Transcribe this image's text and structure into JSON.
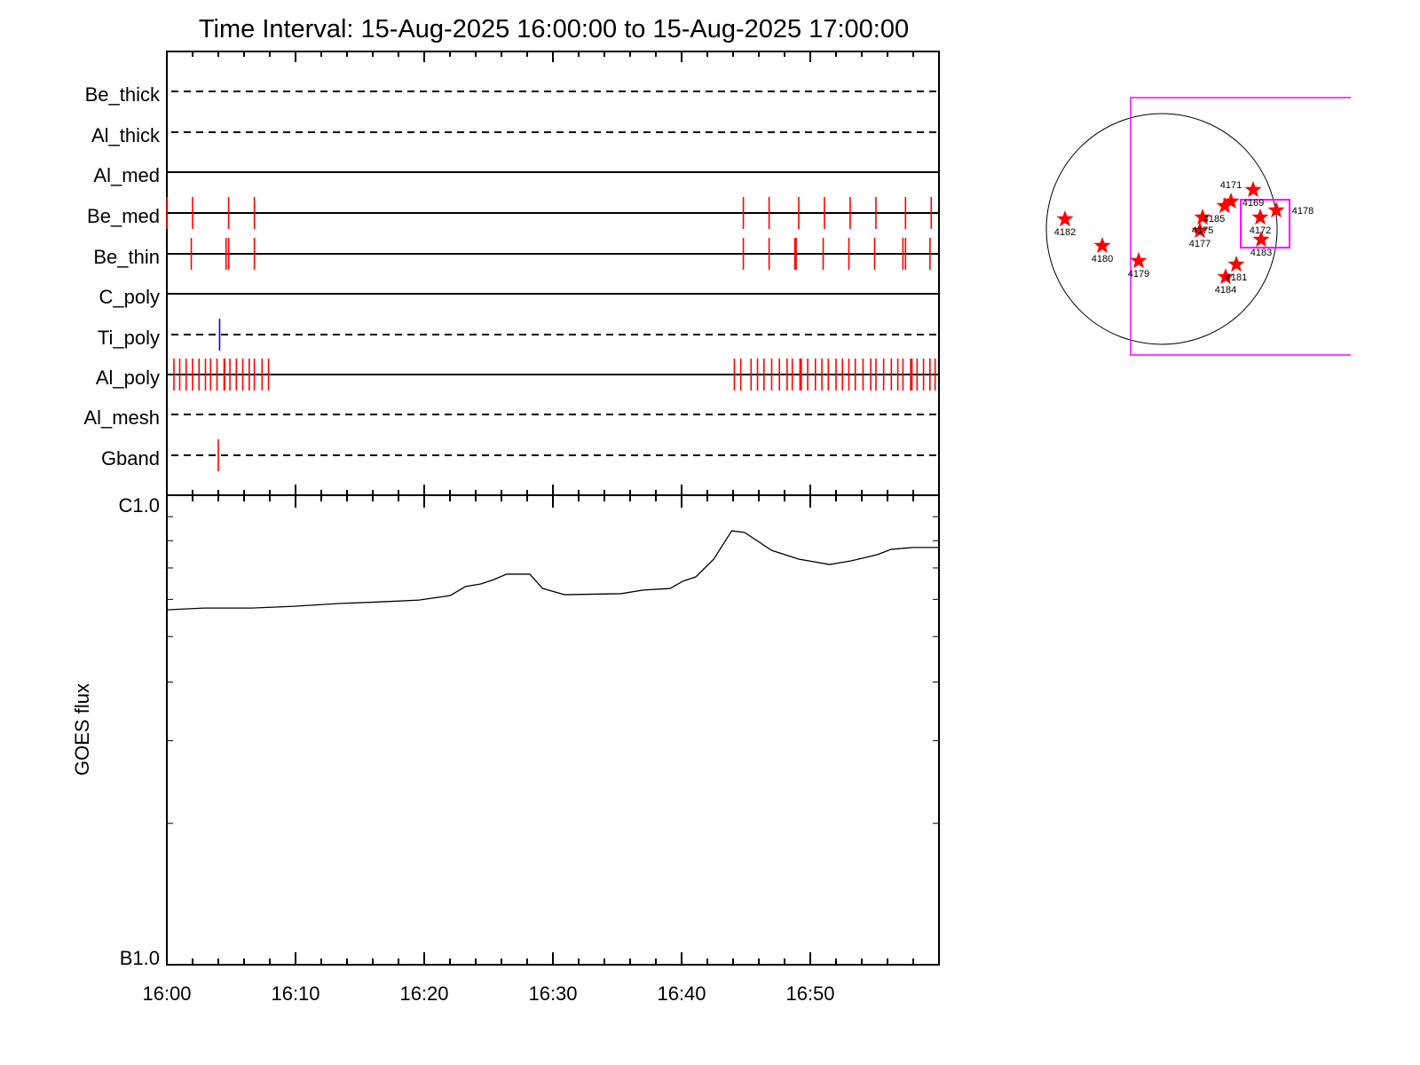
{
  "chart_data": [
    {
      "type": "event-raster",
      "title": "Time Interval: 15-Aug-2025 16:00:00 to 15-Aug-2025 17:00:00",
      "x_unit": "minutes after 16:00",
      "xlim": [
        0,
        60
      ],
      "rows": [
        {
          "name": "Be_thick",
          "line": "dashed",
          "events": []
        },
        {
          "name": "Al_thick",
          "line": "dashed",
          "events": []
        },
        {
          "name": "Al_med",
          "line": "solid",
          "events": []
        },
        {
          "name": "Be_med",
          "line": "solid",
          "events": [
            0.0,
            2.0,
            4.8,
            6.8,
            44.8,
            46.8,
            49.1,
            51.1,
            53.1,
            55.1,
            57.4,
            59.4
          ]
        },
        {
          "name": "Be_thin",
          "line": "solid",
          "events": [
            1.9,
            4.6,
            4.8,
            6.8,
            44.8,
            46.8,
            48.8,
            48.9,
            51.0,
            53.0,
            55.0,
            57.2,
            57.4,
            59.3
          ]
        },
        {
          "name": "C_poly",
          "line": "solid",
          "events": []
        },
        {
          "name": "Ti_poly",
          "line": "dashed",
          "events": [
            4.1
          ],
          "event_color": "#0000ff"
        },
        {
          "name": "Al_poly",
          "line": "solid",
          "events": [
            0.55,
            1.0,
            1.5,
            2.0,
            2.5,
            3.0,
            3.4,
            3.9,
            4.45,
            4.5,
            4.9,
            5.4,
            5.9,
            6.4,
            6.8,
            7.4,
            7.9,
            44.1,
            44.6,
            45.4,
            45.9,
            46.4,
            47.0,
            47.6,
            48.2,
            48.6,
            49.2,
            49.3,
            49.8,
            50.4,
            50.9,
            51.4,
            52.0,
            52.5,
            53.0,
            53.5,
            54.1,
            54.7,
            55.1,
            55.7,
            56.3,
            56.8,
            57.2,
            57.8,
            57.9,
            58.3,
            58.8,
            59.3,
            59.7
          ]
        },
        {
          "name": "Al_mesh",
          "line": "dashed",
          "events": []
        },
        {
          "name": "Gband",
          "line": "dashed",
          "events": [
            4.0
          ]
        }
      ],
      "event_color": "#ff0000"
    },
    {
      "type": "line",
      "ylabel": "GOES flux",
      "yscale": "log",
      "ylim": [
        1e-07,
        1e-06
      ],
      "ytick_labels": [
        "B1.0",
        "C1.0"
      ],
      "xlim": [
        0,
        60
      ],
      "xtick_labels": [
        "16:00",
        "16:10",
        "16:20",
        "16:30",
        "16:40",
        "16:50"
      ],
      "x": [
        0,
        2.9,
        6.6,
        9.9,
        13.4,
        16.8,
        19.6,
        22.0,
        23.2,
        24.4,
        25.4,
        26.4,
        28.2,
        29.2,
        30.9,
        35.3,
        37.0,
        39.1,
        40.1,
        41.1,
        42.5,
        43.9,
        44.9,
        47.0,
        49.1,
        51.5,
        53.2,
        55.2,
        56.3,
        58.0,
        60.0
      ],
      "y": [
        5.7e-07,
        5.75e-07,
        5.75e-07,
        5.8e-07,
        5.88e-07,
        5.93e-07,
        5.98e-07,
        6.11e-07,
        6.39e-07,
        6.47e-07,
        6.61e-07,
        6.79e-07,
        6.79e-07,
        6.33e-07,
        6.14e-07,
        6.17e-07,
        6.28e-07,
        6.33e-07,
        6.56e-07,
        6.7e-07,
        7.31e-07,
        8.4e-07,
        8.33e-07,
        7.63e-07,
        7.31e-07,
        7.12e-07,
        7.25e-07,
        7.47e-07,
        7.67e-07,
        7.74e-07,
        7.74e-07
      ],
      "line_color": "#000000"
    },
    {
      "type": "scatter",
      "description_role": "solar disk map",
      "marker": "star",
      "marker_color": "#ff0000",
      "box_color": "#ff00ff",
      "labels": [
        "4182",
        "4180",
        "4179",
        "4175",
        "4177",
        "4185",
        "4171",
        "4169",
        "4172",
        "4178",
        "4183",
        "4181",
        "4184"
      ]
    }
  ]
}
